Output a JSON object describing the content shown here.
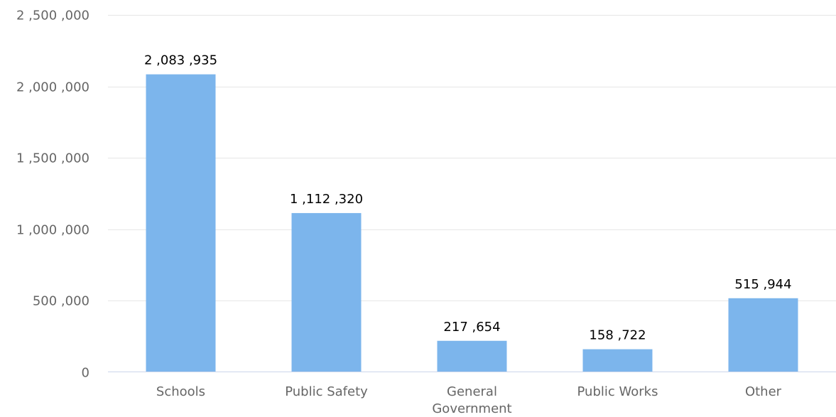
{
  "chart_data": {
    "type": "bar",
    "title": "",
    "xlabel": "",
    "ylabel": "",
    "categories": [
      "Schools",
      "Public Safety",
      "General Government",
      "Public Works",
      "Other"
    ],
    "category_lines": [
      [
        "Schools"
      ],
      [
        "Public Safety"
      ],
      [
        "General",
        "Government"
      ],
      [
        "Public Works"
      ],
      [
        "Other"
      ]
    ],
    "values": [
      2083935,
      1112320,
      217654,
      158722,
      515944
    ],
    "data_labels": [
      "2 ,083 ,935",
      "1 ,112 ,320",
      "217 ,654",
      "158 ,722",
      "515 ,944"
    ],
    "ylim": [
      0,
      2500000
    ],
    "yticks": [
      0,
      500000,
      1000000,
      1500000,
      2000000,
      2500000
    ],
    "ytick_labels": [
      "0",
      "500 ,000",
      "1 ,000 ,000",
      "1 ,500 ,000",
      "2 ,000 ,000",
      "2 ,500 ,000"
    ],
    "grid": true,
    "legend": "none",
    "colors": {
      "bar": "#7cb5ec",
      "grid": "#e6e6e6",
      "axis": "#ccd6eb",
      "tick_text": "#666666",
      "label_text": "#000000"
    }
  }
}
